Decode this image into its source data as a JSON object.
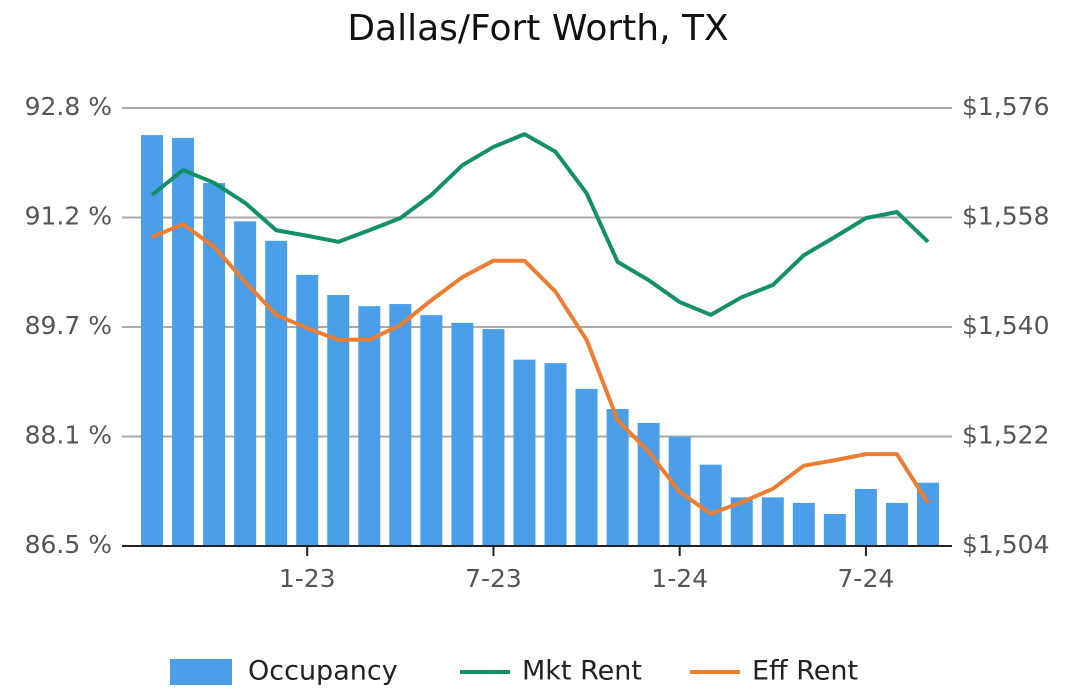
{
  "chart_data": {
    "type": "bar_line",
    "title": "Dallas/Fort Worth, TX",
    "categories": [
      null,
      null,
      null,
      null,
      null,
      "1-23",
      null,
      null,
      null,
      null,
      null,
      "7-23",
      null,
      null,
      null,
      null,
      null,
      "1-24",
      null,
      null,
      null,
      null,
      null,
      "7-24",
      null,
      null
    ],
    "series": [
      {
        "name": "Occupancy",
        "type": "bar",
        "color": "#4a9fe8",
        "axis": "y",
        "values": [
          92.41,
          92.37,
          91.72,
          91.17,
          90.89,
          90.4,
          90.11,
          89.95,
          89.98,
          89.82,
          89.71,
          89.62,
          89.18,
          89.13,
          88.76,
          88.47,
          88.27,
          88.07,
          87.67,
          87.2,
          87.2,
          87.12,
          86.96,
          87.32,
          87.12,
          87.41
        ]
      },
      {
        "name": "Mkt Rent",
        "type": "line",
        "color": "#13906a",
        "axis": "y2",
        "values": [
          1561.7,
          1565.8,
          1563.7,
          1560.4,
          1555.9,
          1555.0,
          1554.0,
          1555.9,
          1557.9,
          1561.7,
          1566.6,
          1569.6,
          1571.7,
          1568.8,
          1562.0,
          1550.7,
          1547.7,
          1544.1,
          1542.0,
          1544.9,
          1546.9,
          1551.8,
          1554.8,
          1557.9,
          1558.9,
          1554.0
        ]
      },
      {
        "name": "Eff Rent",
        "type": "line",
        "color": "#ec7d31",
        "axis": "y2",
        "values": [
          1554.8,
          1556.9,
          1553.2,
          1547.4,
          1542.0,
          1539.8,
          1537.9,
          1537.9,
          1540.3,
          1544.4,
          1548.2,
          1550.9,
          1550.9,
          1545.8,
          1537.9,
          1524.7,
          1519.5,
          1512.9,
          1509.3,
          1511.2,
          1513.4,
          1517.2,
          1518.1,
          1519.1,
          1519.1,
          1511.1
        ]
      }
    ],
    "ylim": [
      86.5,
      92.8
    ],
    "yticks": [
      {
        "value": 86.5,
        "label": "86.5 %"
      },
      {
        "value": 88.075,
        "label": "88.1 %"
      },
      {
        "value": 89.65,
        "label": "89.7 %"
      },
      {
        "value": 91.225,
        "label": "91.2 %"
      },
      {
        "value": 92.8,
        "label": "92.8 %"
      }
    ],
    "y2lim": [
      1504,
      1576
    ],
    "y2ticks": [
      {
        "value": 1504,
        "label": "$1,504"
      },
      {
        "value": 1522,
        "label": "$1,522"
      },
      {
        "value": 1540,
        "label": "$1,540"
      },
      {
        "value": 1558,
        "label": "$1,558"
      },
      {
        "value": 1576,
        "label": "$1,576"
      }
    ],
    "grid": true,
    "legend": "bottom"
  }
}
